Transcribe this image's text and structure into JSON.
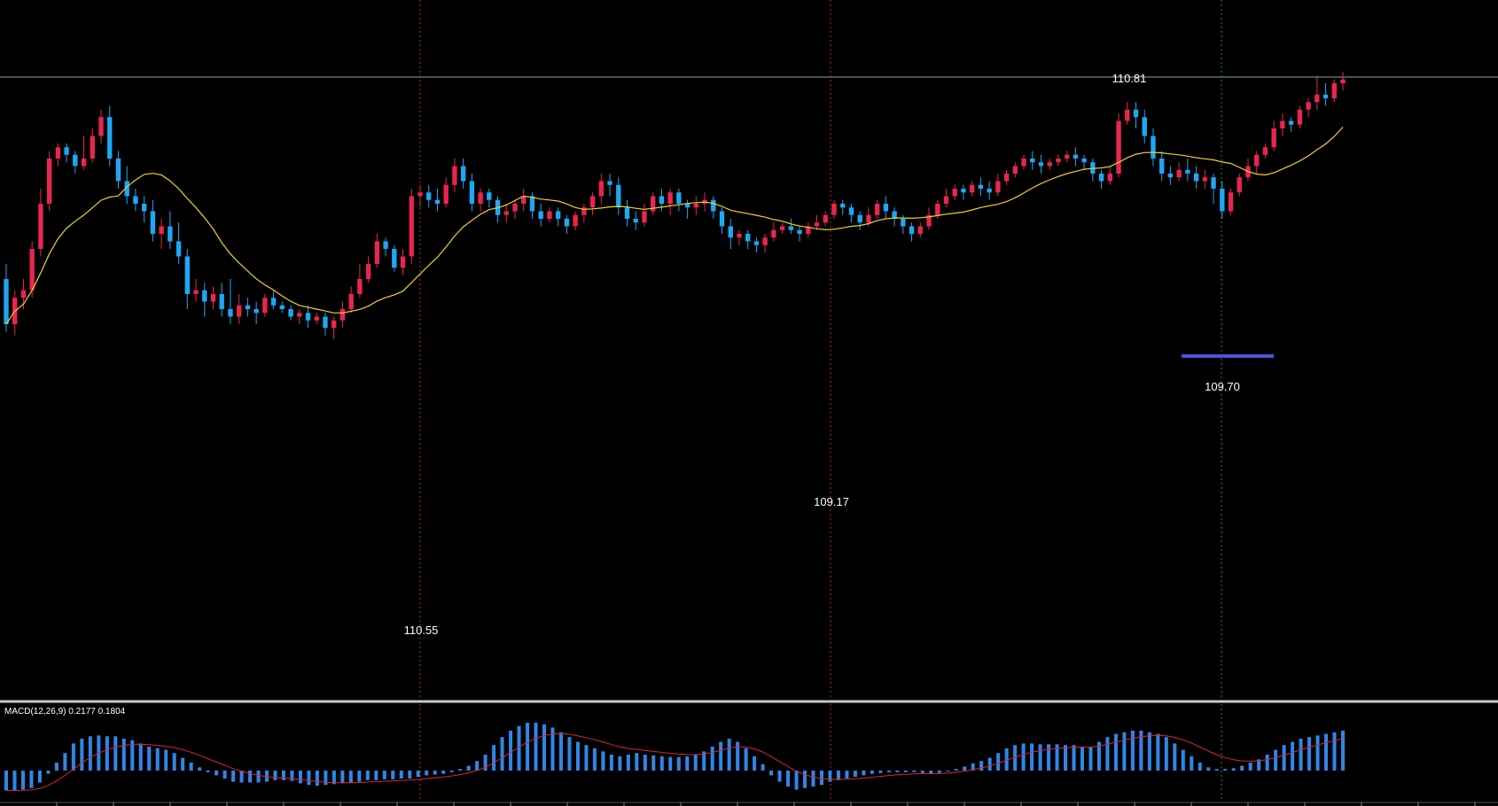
{
  "colors": {
    "background": "#000000",
    "bull": "#e8264f",
    "bear": "#1ea7f5",
    "ma": "#f2cf2a",
    "hline": "#8aa3b8",
    "vline_red": "#b52a2a",
    "vline_green": "#2a8a3a",
    "support": "#4b53d8",
    "macd_hist": "#2f86e8",
    "macd_signal": "#e0203a",
    "separator": "#c8c8c8"
  },
  "price_labels": {
    "top": "110.81",
    "low1": "110.55",
    "low2": "109.17",
    "low3": "109.70"
  },
  "macd": {
    "label": "MACD(12,26,9) 0.2177 0.1804",
    "histogram": [
      -0.25,
      -0.25,
      -0.24,
      -0.22,
      -0.15,
      -0.04,
      0.1,
      0.22,
      0.34,
      0.4,
      0.43,
      0.44,
      0.43,
      0.43,
      0.4,
      0.38,
      0.34,
      0.3,
      0.28,
      0.26,
      0.22,
      0.16,
      0.1,
      0.04,
      -0.02,
      -0.06,
      -0.1,
      -0.14,
      -0.15,
      -0.15,
      -0.15,
      -0.14,
      -0.12,
      -0.12,
      -0.13,
      -0.16,
      -0.18,
      -0.19,
      -0.18,
      -0.17,
      -0.16,
      -0.15,
      -0.14,
      -0.12,
      -0.12,
      -0.11,
      -0.11,
      -0.1,
      -0.1,
      -0.08,
      -0.06,
      -0.05,
      -0.04,
      -0.02,
      0.02,
      0.06,
      0.12,
      0.2,
      0.32,
      0.42,
      0.5,
      0.56,
      0.6,
      0.6,
      0.58,
      0.54,
      0.48,
      0.42,
      0.36,
      0.32,
      0.28,
      0.24,
      0.2,
      0.18,
      0.2,
      0.22,
      0.2,
      0.19,
      0.18,
      0.17,
      0.17,
      0.18,
      0.2,
      0.24,
      0.3,
      0.36,
      0.4,
      0.36,
      0.28,
      0.18,
      0.08,
      -0.06,
      -0.14,
      -0.2,
      -0.24,
      -0.22,
      -0.2,
      -0.18,
      -0.14,
      -0.12,
      -0.1,
      -0.08,
      -0.06,
      -0.04,
      -0.03,
      -0.02,
      -0.02,
      -0.02,
      -0.02,
      -0.03,
      -0.04,
      -0.03,
      -0.01,
      0.02,
      0.05,
      0.09,
      0.12,
      0.16,
      0.22,
      0.28,
      0.32,
      0.34,
      0.34,
      0.33,
      0.33,
      0.33,
      0.32,
      0.32,
      0.3,
      0.3,
      0.36,
      0.42,
      0.46,
      0.48,
      0.5,
      0.5,
      0.48,
      0.46,
      0.42,
      0.34,
      0.26,
      0.18,
      0.1,
      0.04,
      0.02,
      0.02,
      0.03,
      0.06,
      0.1,
      0.14,
      0.2,
      0.26,
      0.32,
      0.36,
      0.4,
      0.42,
      0.44,
      0.46,
      0.48,
      0.5
    ]
  },
  "chart_data": {
    "type": "candlestick",
    "title": "",
    "annotated_levels": [
      110.81,
      110.55,
      109.17,
      109.7
    ],
    "ma_period": 14,
    "candles": [
      [
        100,
        88,
        104,
        86
      ],
      [
        88,
        95,
        97,
        85
      ],
      [
        95,
        97,
        100,
        92
      ],
      [
        97,
        108,
        110,
        95
      ],
      [
        108,
        120,
        124,
        106
      ],
      [
        120,
        132,
        134,
        118
      ],
      [
        132,
        135,
        136,
        130
      ],
      [
        135,
        133,
        136,
        131
      ],
      [
        133,
        130,
        134,
        128
      ],
      [
        130,
        132,
        138,
        129
      ],
      [
        132,
        138,
        140,
        131
      ],
      [
        138,
        143,
        145,
        136
      ],
      [
        143,
        132,
        146,
        130
      ],
      [
        132,
        126,
        134,
        124
      ],
      [
        126,
        122,
        130,
        120
      ],
      [
        122,
        120,
        124,
        118
      ],
      [
        120,
        118,
        122,
        115
      ],
      [
        118,
        112,
        121,
        110
      ],
      [
        112,
        114,
        116,
        108
      ],
      [
        114,
        110,
        118,
        108
      ],
      [
        110,
        106,
        115,
        104
      ],
      [
        106,
        96,
        108,
        92
      ],
      [
        96,
        97,
        100,
        94
      ],
      [
        97,
        94,
        99,
        90
      ],
      [
        94,
        96,
        98,
        92
      ],
      [
        96,
        92,
        99,
        90
      ],
      [
        92,
        90,
        100,
        88
      ],
      [
        90,
        93,
        96,
        88
      ],
      [
        93,
        92,
        95,
        90
      ],
      [
        92,
        91,
        94,
        88
      ],
      [
        91,
        95,
        96,
        90
      ],
      [
        95,
        93,
        97,
        92
      ],
      [
        93,
        92,
        94,
        91
      ],
      [
        92,
        90,
        93,
        89
      ],
      [
        90,
        91,
        92,
        88
      ],
      [
        91,
        89,
        93,
        87
      ],
      [
        89,
        90,
        91,
        88
      ],
      [
        90,
        87,
        91,
        85
      ],
      [
        87,
        89,
        90,
        84
      ],
      [
        89,
        92,
        94,
        87
      ],
      [
        92,
        96,
        98,
        91
      ],
      [
        96,
        100,
        104,
        95
      ],
      [
        100,
        104,
        106,
        99
      ],
      [
        104,
        110,
        112,
        103
      ],
      [
        110,
        108,
        111,
        106
      ],
      [
        108,
        103,
        109,
        102
      ],
      [
        103,
        106,
        108,
        101
      ],
      [
        106,
        122,
        124,
        104
      ],
      [
        122,
        123,
        125,
        119
      ],
      [
        123,
        121,
        125,
        119
      ],
      [
        121,
        120,
        124,
        118
      ],
      [
        120,
        125,
        127,
        119
      ],
      [
        125,
        130,
        132,
        123
      ],
      [
        130,
        126,
        132,
        124
      ],
      [
        126,
        120,
        128,
        118
      ],
      [
        120,
        123,
        124,
        118
      ],
      [
        123,
        121,
        124,
        119
      ],
      [
        121,
        117,
        122,
        115
      ],
      [
        117,
        118,
        120,
        115
      ],
      [
        118,
        120,
        121,
        116
      ],
      [
        120,
        122,
        124,
        118
      ],
      [
        122,
        118,
        123,
        116
      ],
      [
        118,
        116,
        120,
        114
      ],
      [
        116,
        118,
        119,
        115
      ],
      [
        118,
        116,
        119,
        114
      ],
      [
        116,
        114,
        117,
        112
      ],
      [
        114,
        117,
        118,
        113
      ],
      [
        117,
        119,
        120,
        115
      ],
      [
        119,
        122,
        123,
        117
      ],
      [
        122,
        126,
        128,
        120
      ],
      [
        126,
        125,
        128,
        122
      ],
      [
        125,
        119,
        127,
        117
      ],
      [
        119,
        116,
        121,
        114
      ],
      [
        116,
        115,
        118,
        113
      ],
      [
        115,
        118,
        120,
        114
      ],
      [
        118,
        122,
        123,
        117
      ],
      [
        122,
        120,
        124,
        118
      ],
      [
        120,
        123,
        124,
        117
      ],
      [
        123,
        120,
        124,
        118
      ],
      [
        120,
        119,
        121,
        116
      ],
      [
        119,
        120,
        122,
        117
      ],
      [
        120,
        121,
        123,
        118
      ],
      [
        121,
        118,
        122,
        116
      ],
      [
        118,
        114,
        119,
        112
      ],
      [
        114,
        111,
        116,
        108
      ],
      [
        111,
        112,
        113,
        109
      ],
      [
        112,
        110,
        113,
        108
      ],
      [
        110,
        109,
        111,
        107
      ],
      [
        109,
        111,
        112,
        107
      ],
      [
        111,
        113,
        115,
        110
      ],
      [
        113,
        114,
        115,
        112
      ],
      [
        114,
        113,
        116,
        112
      ],
      [
        113,
        112,
        114,
        110
      ],
      [
        112,
        114,
        115,
        111
      ],
      [
        114,
        115,
        117,
        113
      ],
      [
        115,
        117,
        118,
        114
      ],
      [
        117,
        120,
        121,
        116
      ],
      [
        120,
        119,
        121,
        117
      ],
      [
        119,
        117,
        120,
        115
      ],
      [
        117,
        115,
        118,
        113
      ],
      [
        115,
        117,
        119,
        114
      ],
      [
        117,
        120,
        121,
        116
      ],
      [
        120,
        118,
        122,
        116
      ],
      [
        118,
        116,
        119,
        114
      ],
      [
        116,
        114,
        117,
        112
      ],
      [
        114,
        112,
        115,
        110
      ],
      [
        112,
        114,
        115,
        111
      ],
      [
        114,
        117,
        119,
        113
      ],
      [
        117,
        120,
        121,
        116
      ],
      [
        120,
        122,
        124,
        119
      ],
      [
        122,
        124,
        125,
        121
      ],
      [
        124,
        123,
        125,
        121
      ],
      [
        123,
        125,
        126,
        122
      ],
      [
        125,
        124,
        127,
        122
      ],
      [
        124,
        123,
        126,
        121
      ],
      [
        123,
        126,
        128,
        122
      ],
      [
        126,
        128,
        129,
        125
      ],
      [
        128,
        130,
        131,
        127
      ],
      [
        130,
        132,
        133,
        129
      ],
      [
        132,
        131,
        134,
        129
      ],
      [
        131,
        130,
        133,
        128
      ],
      [
        130,
        131,
        132,
        129
      ],
      [
        131,
        132,
        133,
        130
      ],
      [
        132,
        133,
        134,
        131
      ],
      [
        133,
        132,
        135,
        130
      ],
      [
        132,
        131,
        133,
        129
      ],
      [
        131,
        128,
        132,
        126
      ],
      [
        128,
        126,
        129,
        124
      ],
      [
        126,
        128,
        130,
        125
      ],
      [
        128,
        142,
        144,
        127
      ],
      [
        142,
        145,
        147,
        141
      ],
      [
        145,
        143,
        147,
        140
      ],
      [
        143,
        138,
        145,
        136
      ],
      [
        138,
        132,
        140,
        130
      ],
      [
        132,
        128,
        134,
        126
      ],
      [
        128,
        127,
        130,
        125
      ],
      [
        127,
        129,
        131,
        126
      ],
      [
        129,
        128,
        132,
        126
      ],
      [
        128,
        126,
        130,
        124
      ],
      [
        126,
        127,
        129,
        124
      ],
      [
        127,
        124,
        128,
        120
      ],
      [
        124,
        118,
        126,
        116
      ],
      [
        118,
        123,
        124,
        117
      ],
      [
        123,
        127,
        128,
        122
      ],
      [
        127,
        130,
        132,
        126
      ],
      [
        130,
        133,
        134,
        128
      ],
      [
        133,
        135,
        136,
        132
      ],
      [
        135,
        140,
        142,
        134
      ],
      [
        140,
        142,
        144,
        138
      ],
      [
        142,
        141,
        143,
        139
      ],
      [
        141,
        145,
        146,
        140
      ],
      [
        145,
        147,
        148,
        143
      ],
      [
        147,
        149,
        154,
        145
      ],
      [
        149,
        148,
        152,
        146
      ],
      [
        148,
        152,
        153,
        147
      ],
      [
        152,
        153,
        155,
        150
      ]
    ]
  }
}
